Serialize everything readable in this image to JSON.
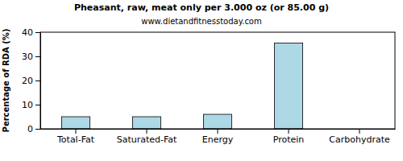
{
  "chart_data": {
    "type": "bar",
    "title": "Pheasant, raw, meat only per 3.000 oz (or 85.00 g)",
    "subtitle": "www.dietandfitnesstoday.com",
    "y_label": "Percentage of RDA (%)",
    "categories": [
      "Total-Fat",
      "Saturated-Fat",
      "Energy",
      "Protein",
      "Carbohydrate"
    ],
    "values": [
      5,
      5,
      6,
      35.5,
      0
    ],
    "color": "#add8e6",
    "ylim": [
      0,
      40
    ],
    "yticks": [
      0,
      10,
      20,
      30,
      40
    ],
    "grid": false
  }
}
